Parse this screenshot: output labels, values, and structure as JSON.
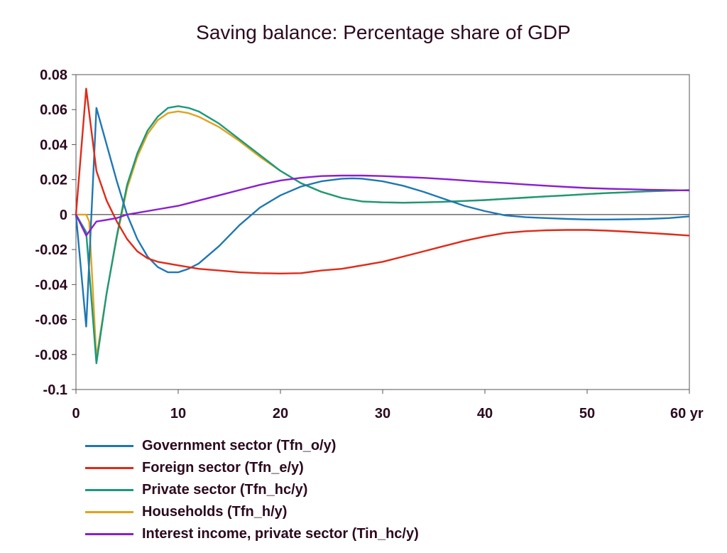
{
  "chart_data": {
    "type": "line",
    "title": "Saving balance: Percentage share of GDP",
    "xlabel": "",
    "ylabel": "",
    "x_unit": "yr",
    "xlim": [
      0,
      60
    ],
    "ylim": [
      -0.1,
      0.08
    ],
    "x_ticks": [
      0,
      10,
      20,
      30,
      40,
      50,
      60
    ],
    "x_tick_labels": [
      "0",
      "10",
      "20",
      "30",
      "40",
      "50",
      "60 yr"
    ],
    "y_ticks": [
      -0.1,
      -0.08,
      -0.06,
      -0.04,
      -0.02,
      0,
      0.02,
      0.04,
      0.06,
      0.08
    ],
    "y_tick_labels": [
      "-0.1",
      "-0.08",
      "-0.06",
      "-0.04",
      "-0.02",
      "0",
      "0.02",
      "0.04",
      "0.06",
      "0.08"
    ],
    "grid": false,
    "zero_line": true,
    "legend_position": "bottom-left",
    "series": [
      {
        "name": "Government sector (Tfn_o/y)",
        "color": "#1f77b4",
        "x": [
          0,
          1,
          2,
          3,
          4,
          5,
          6,
          7,
          8,
          9,
          10,
          11,
          12,
          14,
          16,
          18,
          20,
          22,
          24,
          26,
          27,
          28,
          30,
          32,
          34,
          36,
          38,
          40,
          42,
          44,
          46,
          48,
          50,
          52,
          54,
          56,
          58,
          60
        ],
        "y": [
          0,
          -0.064,
          0.061,
          0.04,
          0.019,
          0.0,
          -0.014,
          -0.024,
          -0.03,
          -0.033,
          -0.033,
          -0.031,
          -0.028,
          -0.018,
          -0.006,
          0.004,
          0.011,
          0.016,
          0.019,
          0.0205,
          0.0207,
          0.0205,
          0.019,
          0.0165,
          0.013,
          0.009,
          0.005,
          0.002,
          -0.0005,
          -0.0015,
          -0.002,
          -0.0025,
          -0.0028,
          -0.0028,
          -0.0027,
          -0.0025,
          -0.002,
          -0.001
        ]
      },
      {
        "name": "Foreign sector (Tfn_e/y)",
        "color": "#e02a18",
        "x": [
          0,
          1,
          2,
          3,
          4,
          5,
          6,
          7,
          8,
          9,
          10,
          12,
          14,
          16,
          18,
          20,
          22,
          24,
          26,
          28,
          30,
          32,
          34,
          36,
          38,
          40,
          42,
          44,
          46,
          48,
          50,
          52,
          54,
          56,
          58,
          60
        ],
        "y": [
          0,
          0.072,
          0.025,
          0.008,
          -0.004,
          -0.014,
          -0.021,
          -0.025,
          -0.027,
          -0.028,
          -0.029,
          -0.031,
          -0.032,
          -0.033,
          -0.0335,
          -0.0337,
          -0.0335,
          -0.032,
          -0.031,
          -0.029,
          -0.027,
          -0.024,
          -0.021,
          -0.018,
          -0.015,
          -0.0125,
          -0.0105,
          -0.0095,
          -0.009,
          -0.0088,
          -0.0088,
          -0.0092,
          -0.0098,
          -0.0105,
          -0.0112,
          -0.012
        ]
      },
      {
        "name": "Private sector (Tfn_hc/y)",
        "color": "#1a9a7a",
        "x": [
          0,
          1,
          2,
          3,
          4,
          5,
          6,
          7,
          8,
          9,
          10,
          11,
          12,
          14,
          16,
          18,
          20,
          22,
          24,
          26,
          28,
          30,
          32,
          34,
          36,
          38,
          40,
          42,
          44,
          46,
          48,
          50,
          52,
          54,
          56,
          58,
          60
        ],
        "y": [
          0,
          -0.01,
          -0.085,
          -0.045,
          -0.012,
          0.017,
          0.035,
          0.048,
          0.056,
          0.061,
          0.062,
          0.061,
          0.059,
          0.052,
          0.043,
          0.034,
          0.025,
          0.018,
          0.013,
          0.0095,
          0.0075,
          0.007,
          0.0068,
          0.007,
          0.0073,
          0.0078,
          0.0083,
          0.009,
          0.0097,
          0.0104,
          0.011,
          0.0117,
          0.0123,
          0.0128,
          0.0133,
          0.0137,
          0.014
        ]
      },
      {
        "name": "Households (Tfn_h/y)",
        "color": "#e2a21e",
        "x": [
          0,
          1,
          1.3,
          2,
          3,
          4,
          5,
          6,
          7,
          8,
          9,
          10,
          11,
          12,
          14,
          16,
          18,
          20,
          22,
          24,
          26,
          28,
          30,
          32,
          34,
          36,
          38,
          40,
          42,
          44,
          46,
          48,
          50,
          52,
          54,
          56,
          58,
          60
        ],
        "y": [
          0,
          0,
          -0.004,
          -0.082,
          -0.045,
          -0.013,
          0.015,
          0.033,
          0.046,
          0.054,
          0.058,
          0.059,
          0.058,
          0.056,
          0.05,
          0.042,
          0.033,
          0.025,
          0.018,
          0.013,
          0.0095,
          0.0075,
          0.007,
          0.0068,
          0.007,
          0.0073,
          0.0078,
          0.0083,
          0.009,
          0.0097,
          0.0104,
          0.011,
          0.0117,
          0.0123,
          0.0128,
          0.0133,
          0.0137,
          0.014
        ]
      },
      {
        "name": "Interest income, private sector (Tin_hc/y)",
        "color": "#8a1ed2",
        "x": [
          0,
          1,
          2,
          3,
          4,
          5,
          6,
          8,
          10,
          12,
          14,
          16,
          18,
          20,
          22,
          24,
          26,
          28,
          30,
          32,
          34,
          36,
          38,
          40,
          42,
          44,
          46,
          48,
          50,
          52,
          54,
          56,
          58,
          60
        ],
        "y": [
          0,
          -0.012,
          -0.004,
          -0.003,
          -0.002,
          0.0,
          0.001,
          0.003,
          0.005,
          0.008,
          0.011,
          0.014,
          0.017,
          0.0195,
          0.021,
          0.022,
          0.0223,
          0.0223,
          0.022,
          0.0215,
          0.021,
          0.0203,
          0.0195,
          0.0187,
          0.018,
          0.0172,
          0.0165,
          0.0158,
          0.0152,
          0.0148,
          0.0145,
          0.0142,
          0.014,
          0.0138
        ]
      }
    ]
  }
}
